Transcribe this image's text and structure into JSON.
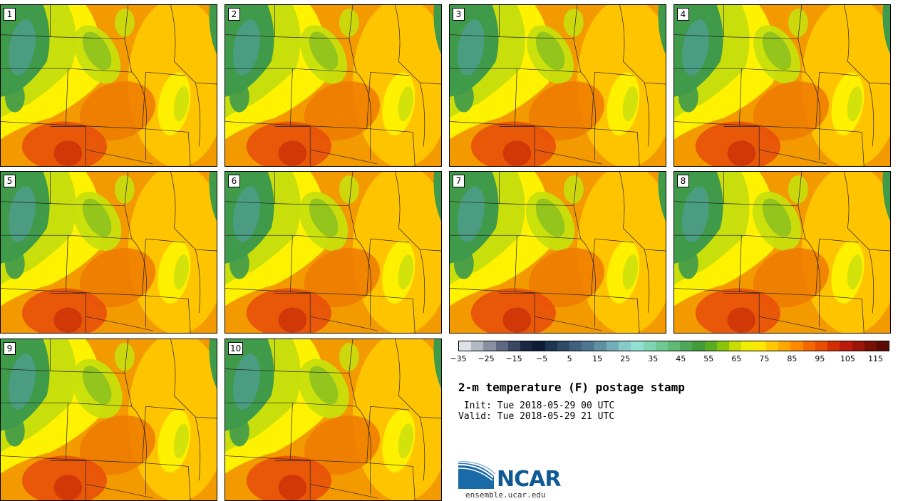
{
  "title": "2-m temperature (F) postage stamp",
  "init_line": " Init: Tue 2018-05-29 00 UTC",
  "valid_line": "Valid: Tue 2018-05-29 21 UTC",
  "logo_text": "NCAR",
  "site": "ensemble.ucar.edu",
  "members": [
    "1",
    "2",
    "3",
    "4",
    "5",
    "6",
    "7",
    "8",
    "9",
    "10"
  ],
  "colorbar": {
    "min": -35,
    "max": 120,
    "step": 5,
    "tick_labels": [
      "−35",
      "−25",
      "−15",
      "−5",
      "5",
      "15",
      "25",
      "35",
      "45",
      "55",
      "65",
      "75",
      "85",
      "95",
      "105",
      "115"
    ],
    "tick_values": [
      -35,
      -25,
      -15,
      -5,
      5,
      15,
      25,
      35,
      45,
      55,
      65,
      75,
      85,
      95,
      105,
      115
    ],
    "colors": [
      "#dde1e6",
      "#b4bac5",
      "#8990a2",
      "#5f6a82",
      "#394763",
      "#1a2744",
      "#0d1d38",
      "#1e3551",
      "#2d4a66",
      "#3e617d",
      "#4e7691",
      "#5f91a3",
      "#72aeb7",
      "#86cbc8",
      "#8fe0d3",
      "#7fd6b2",
      "#6fc892",
      "#5db973",
      "#4ea85a",
      "#449b3b",
      "#5aac22",
      "#8ac40b",
      "#c7dc00",
      "#f2ee00",
      "#ffe900",
      "#ffc800",
      "#ffa800",
      "#ff8800",
      "#f56800",
      "#e84d00",
      "#d42d00",
      "#bc1a0c",
      "#9d1508",
      "#791004",
      "#5a0c02"
    ]
  },
  "map_colors": {
    "cold_green": "#3f9a4a",
    "teal": "#4e9d8e",
    "green": "#8dc21e",
    "yellow_green": "#c8df0c",
    "yellow": "#fff200",
    "light_orange": "#ffc400",
    "orange": "#f29a00",
    "dark_orange": "#ef7a00",
    "red_orange": "#e8500a",
    "red": "#cc3208",
    "border": "#222222"
  }
}
